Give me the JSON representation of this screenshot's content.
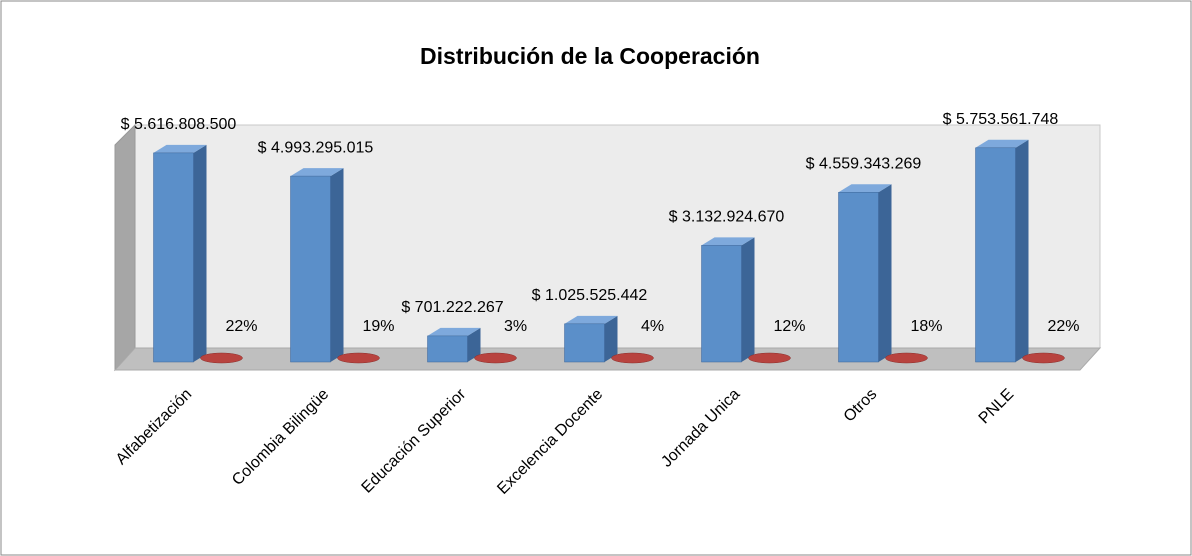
{
  "chart_data": {
    "type": "bar",
    "title": "Distribución de la Cooperación",
    "categories": [
      "Alfabetización",
      "Colombia Bilingüe",
      "Educación Superior",
      "Excelencia Docente",
      "Jornada Unica",
      "Otros",
      "PNLE"
    ],
    "series": [
      {
        "color": "#5b8fc9",
        "values": [
          5616808500,
          4993295015,
          701222267,
          1025525442,
          3132924670,
          4559343269,
          5753561748
        ],
        "value_labels": [
          "$ 5.616.808.500",
          "$ 4.993.295.015",
          "$ 701.222.267",
          "$ 1.025.525.442",
          "$ 3.132.924.670",
          "$ 4.559.343.269",
          "$ 5.753.561.748"
        ]
      },
      {
        "color": "#b8433f",
        "values": [
          0.22,
          0.19,
          0.03,
          0.04,
          0.12,
          0.18,
          0.22
        ],
        "value_labels": [
          "22%",
          "19%",
          "3%",
          "4%",
          "12%",
          "18%",
          "22%"
        ]
      }
    ],
    "ylim": [
      0,
      6500000000
    ]
  }
}
